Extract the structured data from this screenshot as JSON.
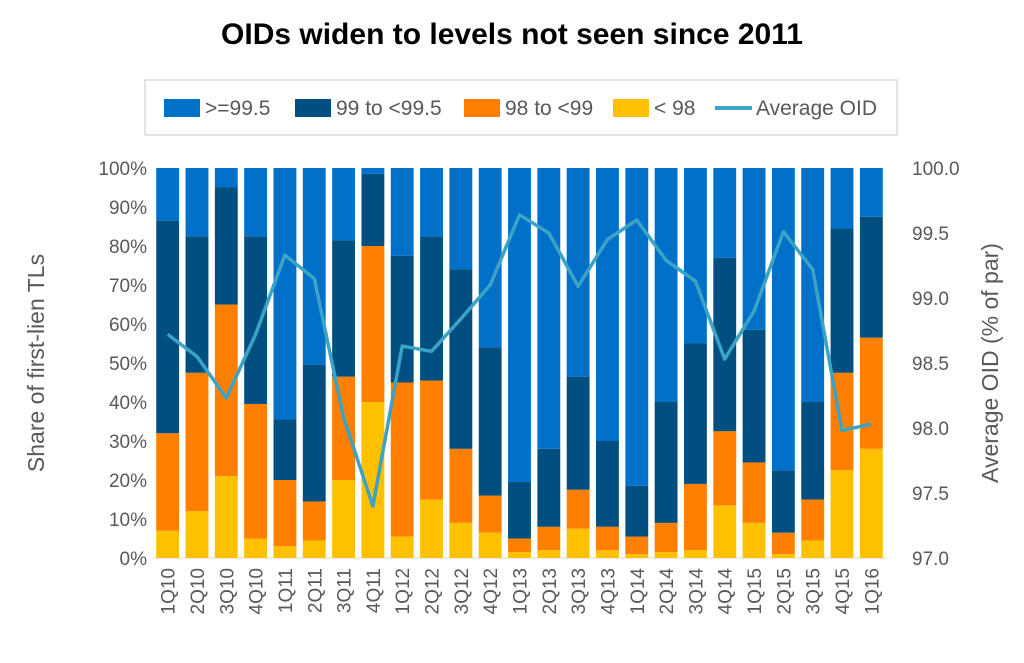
{
  "chart_data": {
    "type": "bar",
    "stacked": true,
    "title": "OIDs widen to levels not seen since 2011",
    "ylabel": "Share of first-lien  TLs",
    "y2label": "Average OID (% of par)",
    "ylim": [
      0,
      100
    ],
    "y2lim": [
      97.0,
      100.0
    ],
    "yticks": [
      "0%",
      "10%",
      "20%",
      "30%",
      "40%",
      "50%",
      "60%",
      "70%",
      "80%",
      "90%",
      "100%"
    ],
    "y2ticks": [
      "97.0",
      "97.5",
      "98.0",
      "98.5",
      "99.0",
      "99.5",
      "100.0"
    ],
    "legend_position": "top",
    "categories": [
      "1Q10",
      "2Q10",
      "3Q10",
      "4Q10",
      "1Q11",
      "2Q11",
      "3Q11",
      "4Q11",
      "1Q12",
      "2Q12",
      "3Q12",
      "4Q12",
      "1Q13",
      "2Q13",
      "3Q13",
      "4Q13",
      "1Q14",
      "2Q14",
      "3Q14",
      "4Q14",
      "1Q15",
      "2Q15",
      "3Q15",
      "4Q15",
      "1Q16"
    ],
    "series": [
      {
        "name": "< 98",
        "color": "#FFC000",
        "values": [
          7,
          12,
          21,
          5,
          3,
          4.5,
          20,
          40,
          5.5,
          15,
          9,
          6.5,
          1.5,
          2,
          7.5,
          2,
          1,
          1.5,
          2,
          13.5,
          9,
          1,
          4.5,
          22.5,
          28
        ]
      },
      {
        "name": "98 to <99",
        "color": "#FF8000",
        "values": [
          25,
          35.5,
          44,
          34.5,
          17,
          10,
          26.5,
          40,
          39.5,
          30.5,
          19,
          9.5,
          3.5,
          6,
          10,
          6,
          4.5,
          7.5,
          17,
          19,
          15.5,
          5.5,
          10.5,
          25,
          28.5
        ]
      },
      {
        "name": "99 to <99.5",
        "color": "#004F80",
        "values": [
          54.5,
          35,
          30,
          43,
          15.5,
          35,
          35,
          18.5,
          32.5,
          37,
          46,
          38,
          14.5,
          20,
          29,
          22,
          13,
          31,
          36,
          44.5,
          34,
          16,
          25,
          37,
          31
        ]
      },
      {
        "name": ">=99.5",
        "color": "#0070C8",
        "values": [
          13.5,
          17.5,
          5,
          17.5,
          64.5,
          50.5,
          18.5,
          1.5,
          22.5,
          17.5,
          26,
          46,
          80.5,
          72,
          53.5,
          70,
          81.5,
          60,
          45,
          23,
          41.5,
          77.5,
          60,
          15.5,
          12.5
        ]
      }
    ],
    "line_series": {
      "name": "Average OID",
      "axis": "secondary",
      "color": "#3BA3C6",
      "values": [
        98.72,
        98.55,
        98.23,
        98.72,
        99.33,
        99.15,
        98.08,
        97.4,
        98.63,
        98.59,
        98.84,
        99.1,
        99.64,
        99.5,
        99.09,
        99.45,
        99.6,
        99.29,
        99.13,
        98.53,
        98.9,
        99.51,
        99.22,
        97.98,
        98.03
      ]
    }
  }
}
